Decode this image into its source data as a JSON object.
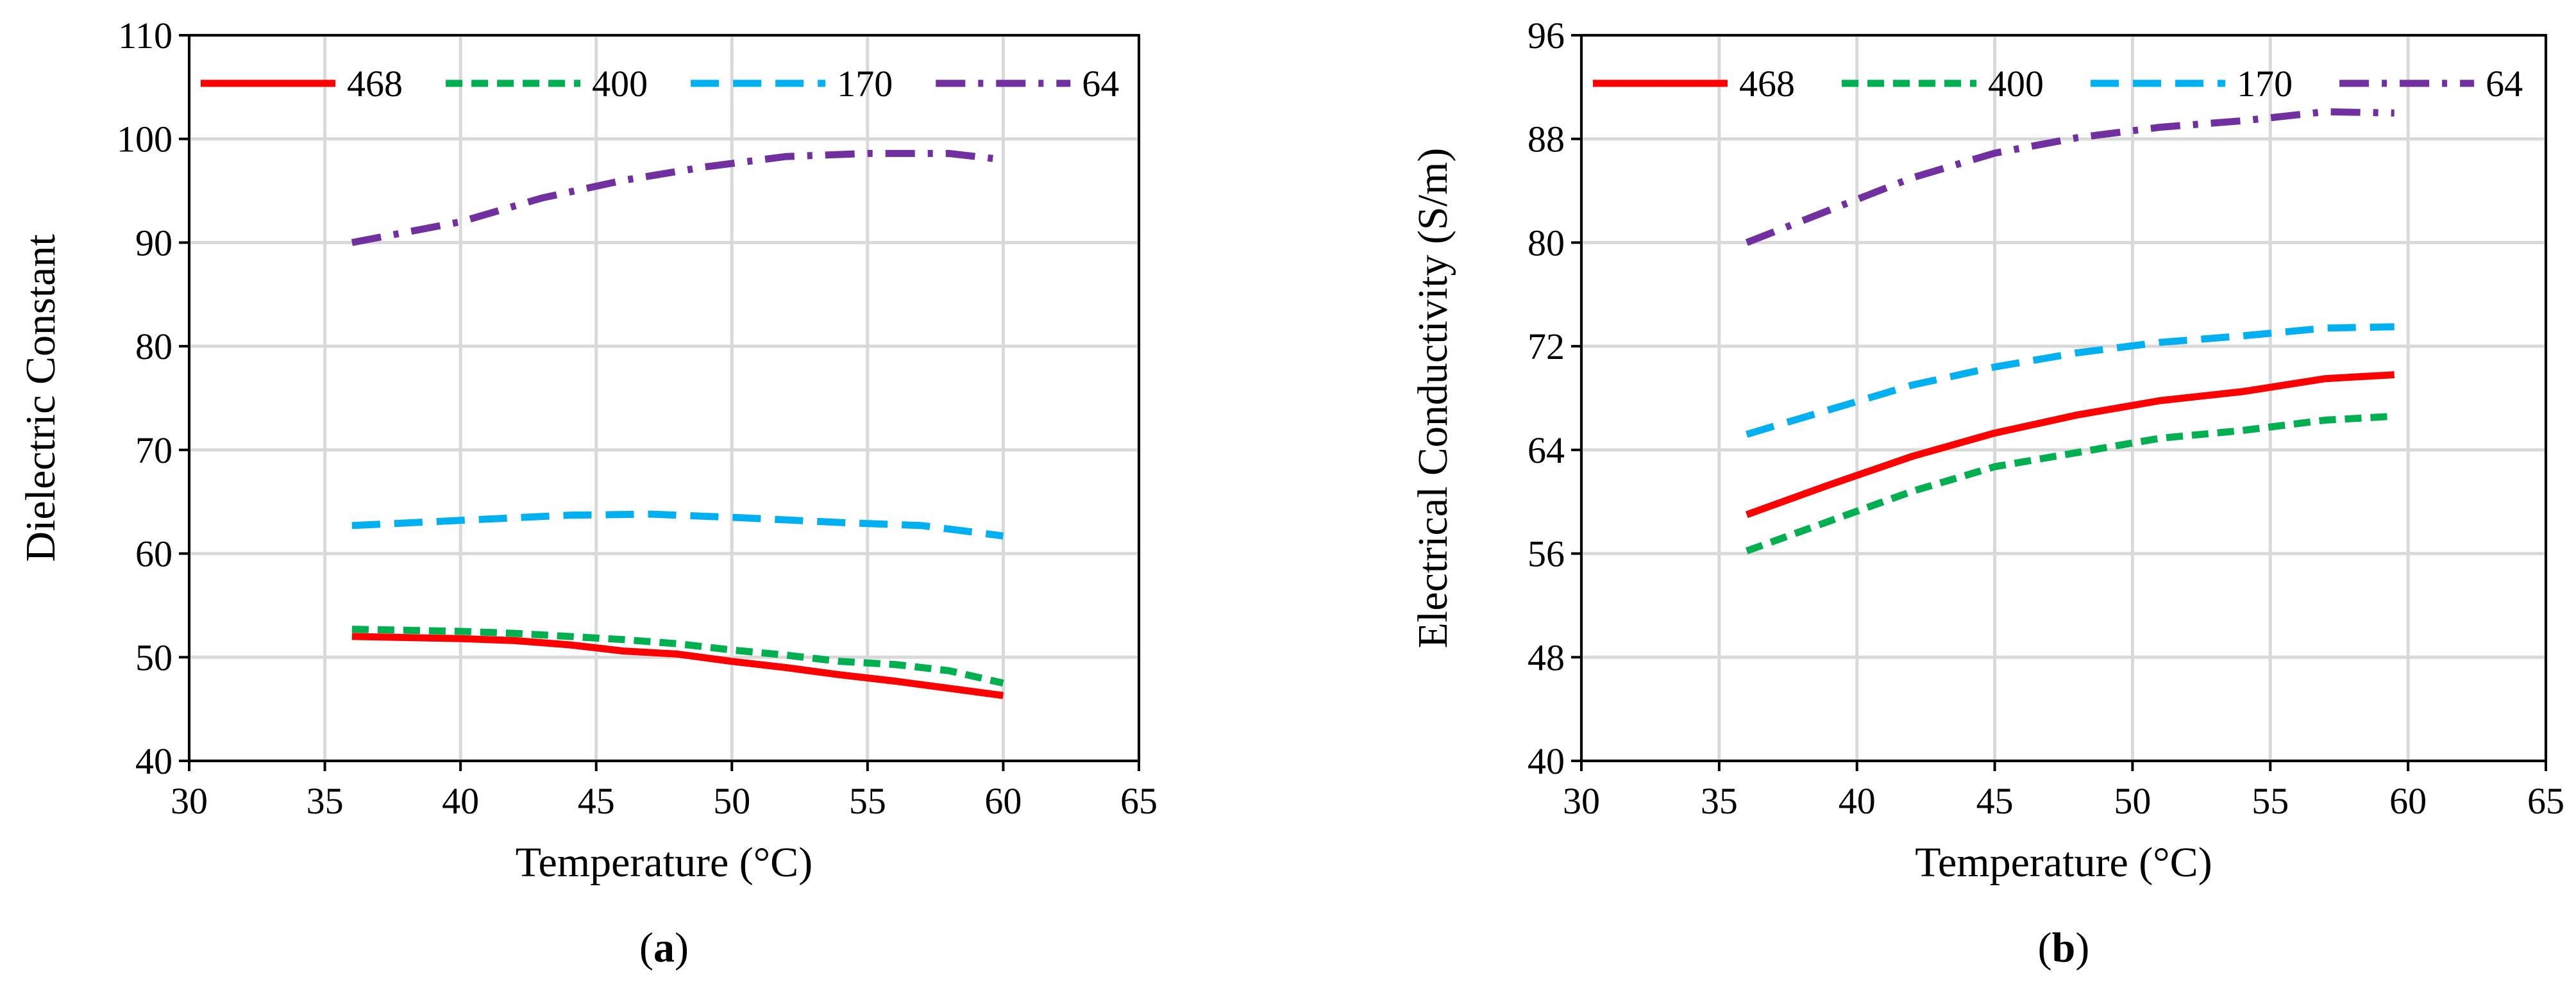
{
  "chart_data": [
    {
      "type": "line",
      "panel_label": {
        "open": "(",
        "letter": "a",
        "close": ")"
      },
      "title": "",
      "xlabel": "Temperature (°C)",
      "ylabel": "Dielectric Constant",
      "xlim": [
        30,
        65
      ],
      "ylim": [
        40,
        110
      ],
      "xticks": [
        30,
        35,
        40,
        45,
        50,
        55,
        60,
        65
      ],
      "yticks": [
        40,
        50,
        60,
        70,
        80,
        90,
        100,
        110
      ],
      "grid": true,
      "legend_position": "top",
      "series": [
        {
          "name": "468",
          "color": "#ff0000",
          "style": "solid",
          "x": [
            36,
            40,
            42,
            44,
            46,
            48,
            50,
            52,
            54,
            56,
            58,
            60
          ],
          "y": [
            52,
            51.8,
            51.6,
            51.2,
            50.6,
            50.3,
            49.6,
            49,
            48.3,
            47.7,
            47,
            46.3
          ]
        },
        {
          "name": "400",
          "color": "#00b050",
          "style": "dash",
          "x": [
            36,
            40,
            42,
            44,
            46,
            48,
            50,
            52,
            54,
            56,
            58,
            60
          ],
          "y": [
            52.7,
            52.5,
            52.3,
            52,
            51.7,
            51.3,
            50.7,
            50.2,
            49.6,
            49.3,
            48.7,
            47.5
          ]
        },
        {
          "name": "170",
          "color": "#00b0f0",
          "style": "longdash",
          "x": [
            36,
            40,
            44,
            47,
            50,
            54,
            57,
            60
          ],
          "y": [
            62.7,
            63.2,
            63.7,
            63.8,
            63.5,
            63,
            62.7,
            61.7
          ]
        },
        {
          "name": "64",
          "color": "#7030a0",
          "style": "dashdot",
          "x": [
            36,
            40,
            43,
            46,
            49,
            52,
            55,
            58,
            60
          ],
          "y": [
            90,
            92,
            94.3,
            96,
            97.3,
            98.3,
            98.6,
            98.6,
            98
          ]
        }
      ]
    },
    {
      "type": "line",
      "panel_label": {
        "open": "(",
        "letter": "b",
        "close": ")"
      },
      "title": "",
      "xlabel": "Temperature (°C)",
      "ylabel": "Electrical Conductivity (S/m)",
      "xlim": [
        30,
        65
      ],
      "ylim": [
        40,
        96
      ],
      "xticks": [
        30,
        35,
        40,
        45,
        50,
        55,
        60,
        65
      ],
      "yticks": [
        40,
        48,
        56,
        64,
        72,
        80,
        88,
        96
      ],
      "grid": true,
      "legend_position": "top",
      "series": [
        {
          "name": "468",
          "color": "#ff0000",
          "style": "solid",
          "x": [
            36,
            39,
            42,
            45,
            48,
            51,
            54,
            57,
            59.5
          ],
          "y": [
            59,
            61.3,
            63.5,
            65.3,
            66.7,
            67.8,
            68.5,
            69.5,
            69.8
          ]
        },
        {
          "name": "400",
          "color": "#00b050",
          "style": "dash",
          "x": [
            36,
            39,
            42,
            45,
            48,
            51,
            54,
            57,
            59.5
          ],
          "y": [
            56.2,
            58.5,
            60.8,
            62.7,
            63.8,
            64.9,
            65.5,
            66.3,
            66.6
          ]
        },
        {
          "name": "170",
          "color": "#00b0f0",
          "style": "longdash",
          "x": [
            36,
            39,
            42,
            45,
            48,
            51,
            54,
            57,
            59.5
          ],
          "y": [
            65.2,
            67.1,
            69,
            70.4,
            71.5,
            72.3,
            72.8,
            73.4,
            73.5
          ]
        },
        {
          "name": "64",
          "color": "#7030a0",
          "style": "dashdot",
          "x": [
            36,
            39,
            42,
            45,
            48,
            51,
            54,
            57,
            59.5
          ],
          "y": [
            80,
            82.5,
            85,
            86.9,
            88.1,
            88.9,
            89.4,
            90.1,
            90
          ]
        }
      ]
    }
  ]
}
